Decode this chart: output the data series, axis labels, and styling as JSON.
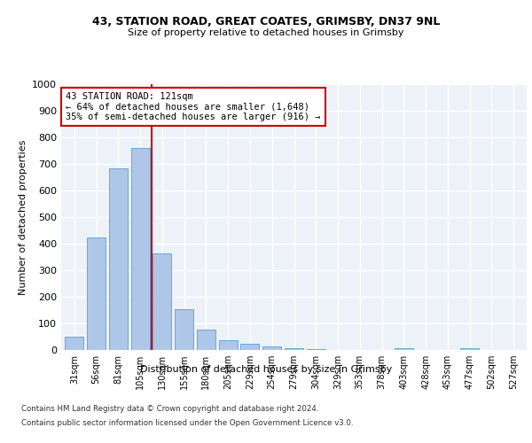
{
  "title1": "43, STATION ROAD, GREAT COATES, GRIMSBY, DN37 9NL",
  "title2": "Size of property relative to detached houses in Grimsby",
  "xlabel": "Distribution of detached houses by size in Grimsby",
  "ylabel": "Number of detached properties",
  "categories": [
    "31sqm",
    "56sqm",
    "81sqm",
    "105sqm",
    "130sqm",
    "155sqm",
    "180sqm",
    "205sqm",
    "229sqm",
    "254sqm",
    "279sqm",
    "304sqm",
    "329sqm",
    "353sqm",
    "378sqm",
    "403sqm",
    "428sqm",
    "453sqm",
    "477sqm",
    "502sqm",
    "527sqm"
  ],
  "values": [
    50,
    425,
    685,
    760,
    365,
    155,
    78,
    38,
    25,
    13,
    8,
    5,
    0,
    0,
    0,
    8,
    0,
    0,
    8,
    0,
    0
  ],
  "bar_color": "#aec6e8",
  "bar_edge_color": "#5a9fd4",
  "vline_x": 3.5,
  "vline_color": "#cc0000",
  "annotation_title": "43 STATION ROAD: 121sqm",
  "annotation_line2": "← 64% of detached houses are smaller (1,648)",
  "annotation_line3": "35% of semi-detached houses are larger (916) →",
  "annotation_box_color": "#cc0000",
  "ylim": [
    0,
    1000
  ],
  "yticks": [
    0,
    100,
    200,
    300,
    400,
    500,
    600,
    700,
    800,
    900,
    1000
  ],
  "footer1": "Contains HM Land Registry data © Crown copyright and database right 2024.",
  "footer2": "Contains public sector information licensed under the Open Government Licence v3.0.",
  "bg_color": "#edf2f9"
}
